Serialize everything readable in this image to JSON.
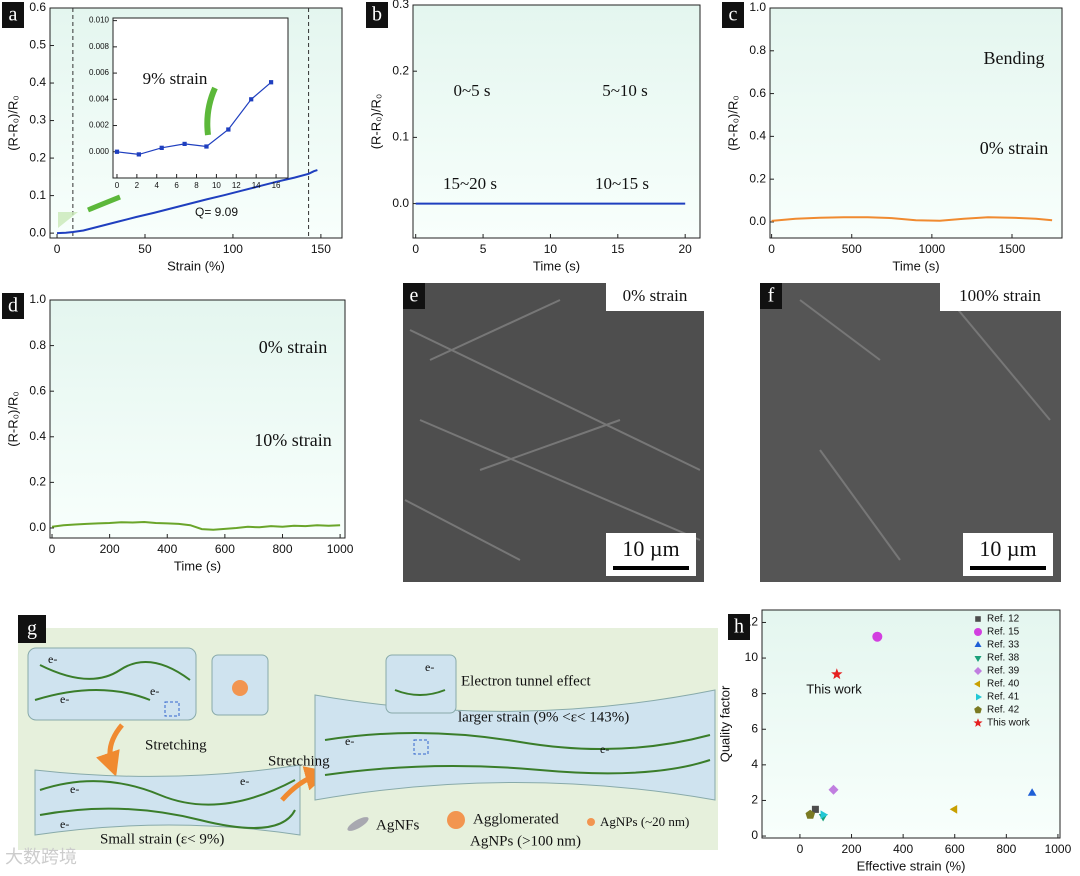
{
  "chart_data": [
    {
      "type": "line",
      "panel": "a",
      "xlabel": "Strain (%)",
      "ylabel": "(R-R₀)/R₀",
      "x": [
        0,
        5,
        9,
        15,
        25,
        35,
        45,
        55,
        65,
        75,
        85,
        95,
        105,
        115,
        125,
        135,
        143,
        146,
        148
      ],
      "values": [
        0,
        0.001,
        0.003,
        0.007,
        0.019,
        0.031,
        0.043,
        0.054,
        0.066,
        0.078,
        0.09,
        0.101,
        0.113,
        0.125,
        0.137,
        0.148,
        0.158,
        0.165,
        0.168
      ],
      "color": "#1f3fbf",
      "xlim": [
        -4,
        162
      ],
      "ylim": [
        -0.013,
        0.6
      ],
      "xticks": [
        0,
        50,
        100,
        150
      ],
      "yticks": [
        {
          "value": 0,
          "label": "0.0"
        },
        0.1,
        0.2,
        0.3,
        0.4,
        0.5,
        0.6
      ],
      "vlines": [
        9,
        143
      ],
      "annotations": [
        "Q= 9.09"
      ]
    },
    {
      "type": "line",
      "xlim": [
        -0.4,
        17.2
      ],
      "ylim": [
        -0.002,
        0.0102
      ],
      "x": [
        0,
        2.2,
        4.5,
        6.8,
        9,
        11.2,
        13.5,
        15.5
      ],
      "values": [
        0,
        -0.0002,
        0.0003,
        0.0006,
        0.0004,
        0.0017,
        0.004,
        0.0053
      ],
      "color": "#1f3fbf",
      "marker": "square",
      "xticks": [
        0,
        2,
        4,
        6,
        8,
        10,
        12,
        14,
        16
      ],
      "yticks": [
        {
          "value": 0,
          "label": "0.000"
        },
        {
          "value": 0.002,
          "label": "0.002"
        },
        {
          "value": 0.004,
          "label": "0.004"
        },
        {
          "value": 0.006,
          "label": "0.006"
        },
        {
          "value": 0.008,
          "label": "0.008"
        },
        {
          "value": 0.01,
          "label": "0.010"
        }
      ],
      "annotations": [
        "9% strain"
      ]
    },
    {
      "type": "line",
      "panel": "b",
      "xlabel": "Time (s)",
      "ylabel": "(R-R₀)/R₀",
      "x": [
        0,
        20
      ],
      "values": [
        0,
        0
      ],
      "color": "#1f3fbf",
      "xlim": [
        -0.2,
        21.1
      ],
      "ylim": [
        -0.052,
        0.3
      ],
      "xticks": [
        0,
        5,
        10,
        15,
        20
      ],
      "yticks": [
        {
          "value": 0,
          "label": "0.0"
        },
        0.1,
        0.2,
        0.3
      ],
      "annotations": [
        "0~5 s",
        "5~10 s",
        "15~20 s",
        "10~15 s"
      ]
    },
    {
      "type": "line",
      "panel": "c",
      "xlabel": "Time (s)",
      "ylabel": "(R-R₀)/R₀",
      "x": [
        0,
        150,
        300,
        450,
        600,
        750,
        900,
        1050,
        1200,
        1350,
        1500,
        1650,
        1750
      ],
      "values": [
        0.005,
        0.015,
        0.02,
        0.022,
        0.022,
        0.018,
        0.008,
        0.006,
        0.015,
        0.022,
        0.02,
        0.015,
        0.008
      ],
      "color": "#f08a30",
      "xlim": [
        -10,
        1812
      ],
      "ylim": [
        -0.075,
        1.0
      ],
      "xticks": [
        0,
        500,
        1000,
        1500
      ],
      "yticks": [
        {
          "value": 0,
          "label": "0.0"
        },
        0.2,
        0.4,
        0.6,
        0.8,
        {
          "value": 1,
          "label": "1.0"
        }
      ],
      "annotations": [
        "Bending",
        "0% strain"
      ]
    },
    {
      "type": "line",
      "panel": "d",
      "xlabel": "Time (s)",
      "ylabel": "(R-R₀)/R₀",
      "x": [
        0,
        40,
        80,
        120,
        160,
        200,
        240,
        280,
        320,
        360,
        400,
        440,
        480,
        520,
        560,
        600,
        640,
        680,
        720,
        760,
        800,
        840,
        880,
        920,
        960,
        1000
      ],
      "values": [
        0.005,
        0.012,
        0.015,
        0.018,
        0.02,
        0.022,
        0.025,
        0.024,
        0.026,
        0.022,
        0.02,
        0.018,
        0.012,
        -0.005,
        -0.008,
        -0.004,
        0,
        0.005,
        0.003,
        0.008,
        0.005,
        0.01,
        0.008,
        0.012,
        0.01,
        0.012
      ],
      "color": "#6aa52a",
      "xlim": [
        -7,
        1017
      ],
      "ylim": [
        -0.044,
        1.0
      ],
      "xticks": [
        0,
        200,
        400,
        600,
        800,
        1000
      ],
      "yticks": [
        {
          "value": 0,
          "label": "0.0"
        },
        0.2,
        0.4,
        0.6,
        0.8,
        {
          "value": 1,
          "label": "1.0"
        }
      ],
      "annotations": [
        "0% strain",
        "10% strain"
      ]
    },
    {
      "type": "scatter",
      "panel": "h",
      "xlabel": "Effective strain (%)",
      "ylabel": "Quality factor",
      "xlim": [
        -147,
        1008
      ],
      "ylim": [
        -0.11,
        12.7
      ],
      "xticks": [
        0,
        200,
        400,
        600,
        800,
        1000
      ],
      "yticks": [
        0,
        2,
        4,
        6,
        8,
        10,
        12
      ],
      "legend": "upper right",
      "series": [
        {
          "name": "Ref. 12",
          "color": "#4d4d4d",
          "marker": "square",
          "x": [
            60
          ],
          "values": [
            1.5
          ]
        },
        {
          "name": "Ref. 15",
          "color": "#d23fe0",
          "marker": "circle",
          "x": [
            300
          ],
          "values": [
            11.2
          ]
        },
        {
          "name": "Ref. 33",
          "color": "#1e5fd6",
          "marker": "triangle-up",
          "x": [
            900
          ],
          "values": [
            2.4
          ]
        },
        {
          "name": "Ref. 38",
          "color": "#1aa07a",
          "marker": "triangle-down",
          "x": [
            90
          ],
          "values": [
            1.1
          ]
        },
        {
          "name": "Ref. 39",
          "color": "#c07ee0",
          "marker": "diamond",
          "x": [
            130
          ],
          "values": [
            2.6
          ]
        },
        {
          "name": "Ref. 40",
          "color": "#c8a000",
          "marker": "triangle-left",
          "x": [
            600
          ],
          "values": [
            1.5
          ]
        },
        {
          "name": "Ref. 41",
          "color": "#22c8d6",
          "marker": "triangle-right",
          "x": [
            90
          ],
          "values": [
            1.2
          ]
        },
        {
          "name": "Ref. 42",
          "color": "#7a7a22",
          "marker": "pentagon",
          "x": [
            40
          ],
          "values": [
            1.2
          ]
        },
        {
          "name": "This work",
          "color": "#e52020",
          "marker": "star",
          "x": [
            143
          ],
          "values": [
            9.09
          ]
        }
      ],
      "annotations": [
        "This work"
      ]
    }
  ],
  "images": [
    {
      "panel": "e",
      "label": "0% strain",
      "scale_bar": "10 µm"
    },
    {
      "panel": "f",
      "label": "100% strain",
      "scale_bar": "10 µm"
    }
  ],
  "schematic": {
    "panel": "g",
    "stretching": [
      "Stretching",
      "Stretching"
    ],
    "tunnel": "Electron tunnel effect",
    "large_strain": "larger strain (9% <ε< 143%)",
    "small_strain": "Small strain (ε< 9%)",
    "agnfs": "AgNFs",
    "agglomerated": [
      "Agglomerated",
      "AgNPs (>100 nm)"
    ],
    "agnps": "AgNPs (~20 nm)",
    "electrons": [
      "e-",
      "e-",
      "e-",
      "e-",
      "e-",
      "e-",
      "e-",
      "e-",
      "e-"
    ]
  },
  "watermark": "大数跨境"
}
